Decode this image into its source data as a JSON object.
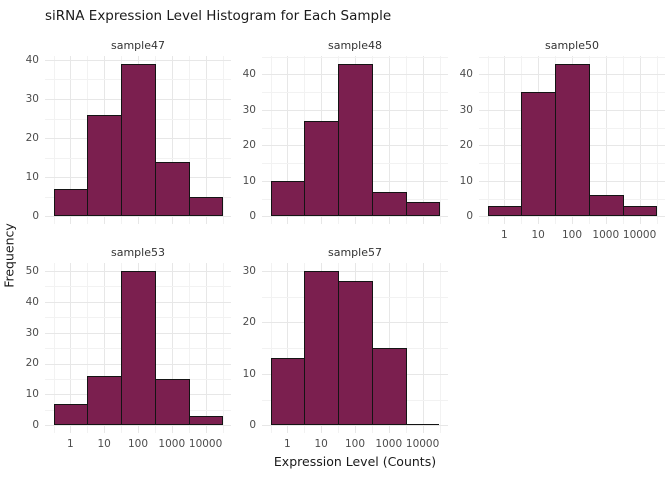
{
  "title": "siRNA Expression Level Histogram for Each Sample",
  "axes": {
    "x_label": "Expression Level (Counts)",
    "y_label": "Frequency",
    "x_scale": "log10",
    "x_tick_labels": [
      "1",
      "10",
      "100",
      "1000",
      "10000"
    ]
  },
  "colors": {
    "bar_fill": "#7B1F4F",
    "bar_border": "#141414",
    "grid_major": "#e7e7e7",
    "grid_minor": "#f2f2f2",
    "tick_text": "#4d4d4d",
    "strip_text": "#333333",
    "background": "#ffffff"
  },
  "chart_data": [
    {
      "type": "bar",
      "title": "sample47",
      "categories": [
        1,
        10,
        100,
        1000,
        10000
      ],
      "values": [
        7,
        26,
        39,
        14,
        5
      ],
      "yticks": [
        0,
        10,
        20,
        30,
        40
      ],
      "show_x_labels": false,
      "facet": {
        "row": 0,
        "col": 0
      }
    },
    {
      "type": "bar",
      "title": "sample48",
      "categories": [
        1,
        10,
        100,
        1000,
        10000
      ],
      "values": [
        10,
        27,
        43,
        7,
        4
      ],
      "yticks": [
        0,
        10,
        20,
        30,
        40
      ],
      "show_x_labels": false,
      "facet": {
        "row": 0,
        "col": 1
      }
    },
    {
      "type": "bar",
      "title": "sample50",
      "categories": [
        1,
        10,
        100,
        1000,
        10000
      ],
      "values": [
        3,
        35,
        43,
        6,
        3
      ],
      "yticks": [
        0,
        10,
        20,
        30,
        40
      ],
      "show_x_labels": true,
      "facet": {
        "row": 0,
        "col": 2
      }
    },
    {
      "type": "bar",
      "title": "sample53",
      "categories": [
        1,
        10,
        100,
        1000,
        10000
      ],
      "values": [
        7,
        16,
        50,
        15,
        3
      ],
      "yticks": [
        0,
        10,
        20,
        30,
        40,
        50
      ],
      "show_x_labels": true,
      "facet": {
        "row": 1,
        "col": 0
      }
    },
    {
      "type": "bar",
      "title": "sample57",
      "categories": [
        1,
        10,
        100,
        1000,
        10000
      ],
      "values": [
        13,
        30,
        28,
        15,
        0
      ],
      "yticks": [
        0,
        10,
        20,
        30
      ],
      "show_x_labels": true,
      "facet": {
        "row": 1,
        "col": 1
      }
    }
  ]
}
